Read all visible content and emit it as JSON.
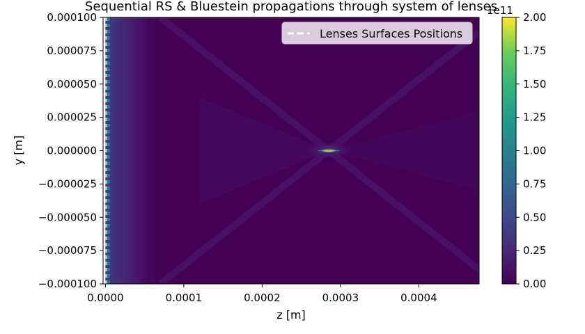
{
  "chart_data": {
    "type": "heatmap",
    "title": "Sequential RS & Bluestein propagations through system of lenses",
    "xlabel": "z [m]",
    "ylabel": "y [m]",
    "xlim": [
      -3e-06,
      0.000477
    ],
    "ylim": [
      -0.0001,
      0.0001
    ],
    "x_ticks": [
      {
        "value": 0.0,
        "label": "0.0000"
      },
      {
        "value": 0.0001,
        "label": "0.0001"
      },
      {
        "value": 0.0002,
        "label": "0.0002"
      },
      {
        "value": 0.0003,
        "label": "0.0003"
      },
      {
        "value": 0.0004,
        "label": "0.0004"
      }
    ],
    "y_ticks": [
      {
        "value": 0.0001,
        "label": "0.000100"
      },
      {
        "value": 7.5e-05,
        "label": "0.000075"
      },
      {
        "value": 5e-05,
        "label": "0.000050"
      },
      {
        "value": 2.5e-05,
        "label": "0.000025"
      },
      {
        "value": 0.0,
        "label": "0.000000"
      },
      {
        "value": -2.5e-05,
        "label": "−0.000025"
      },
      {
        "value": -5e-05,
        "label": "−0.000050"
      },
      {
        "value": -7.5e-05,
        "label": "−0.000075"
      },
      {
        "value": -0.0001,
        "label": "−0.000100"
      }
    ],
    "colorbar": {
      "colormap": "viridis",
      "range": [
        0.0,
        2.0
      ],
      "scale_label": "1e11",
      "ticks": [
        {
          "value": 0.0,
          "label": "0.00"
        },
        {
          "value": 0.25,
          "label": "0.25"
        },
        {
          "value": 0.5,
          "label": "0.50"
        },
        {
          "value": 0.75,
          "label": "0.75"
        },
        {
          "value": 1.0,
          "label": "1.00"
        },
        {
          "value": 1.25,
          "label": "1.25"
        },
        {
          "value": 1.5,
          "label": "1.50"
        },
        {
          "value": 1.75,
          "label": "1.75"
        },
        {
          "value": 2.0,
          "label": "2.00"
        }
      ]
    },
    "legend": {
      "placement": "upper-right",
      "entries": [
        {
          "label": "Lenses Surfaces Positions",
          "style": "dashed",
          "color": "#ffffff"
        }
      ]
    },
    "data_extent": {
      "z_start": 0.0,
      "z_end": 0.000477
    },
    "focus": {
      "z": 0.000285,
      "y": 0.0,
      "peak_value": 2.0
    },
    "lens_surface_positions_z": [
      0.0,
      2e-06,
      4e-06
    ],
    "colors": {
      "background": "#440154",
      "background_dark": "#3f0b5b",
      "streak": "#4e2f87",
      "peak": "#fde725",
      "teal": "#21908c"
    }
  }
}
